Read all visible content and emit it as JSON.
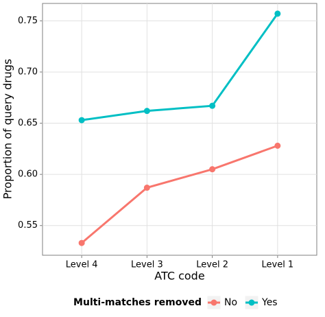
{
  "chart_data": {
    "type": "line",
    "x_label": "ATC code",
    "y_label": "Proportion of query drugs",
    "categories": [
      "Level 4",
      "Level 3",
      "Level 2",
      "Level 1"
    ],
    "series": [
      {
        "name": "No",
        "color": "#F8766D",
        "values": [
          0.533,
          0.587,
          0.605,
          0.628
        ]
      },
      {
        "name": "Yes",
        "color": "#00BFC4",
        "values": [
          0.653,
          0.662,
          0.667,
          0.757
        ]
      }
    ],
    "legend_title": "Multi-matches removed",
    "legend_position": "bottom",
    "ylim": [
      0.521,
      0.767
    ],
    "yticks": [
      0.55,
      {
        "value": 0.6,
        "label": "0.60"
      },
      0.65,
      {
        "value": 0.7,
        "label": "0.70"
      },
      0.75
    ],
    "grid": true
  }
}
